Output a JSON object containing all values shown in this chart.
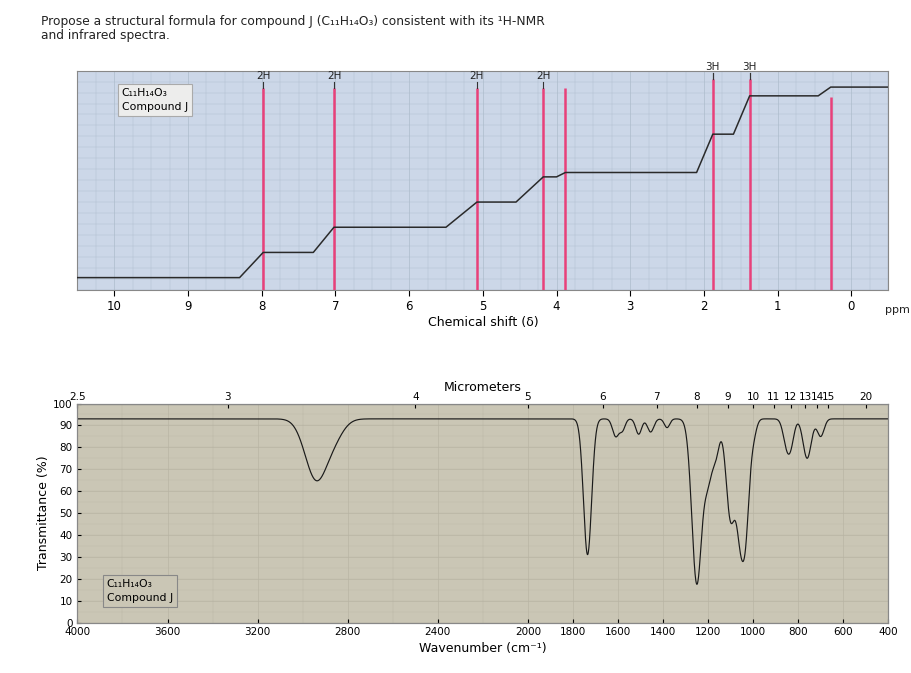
{
  "title_line1": "Propose a structural formula for compound J (C₁₁H₁₄O₃) consistent with its ¹H-NMR",
  "title_line2": "and infrared spectra.",
  "nmr_bg_color": "#ccd7e8",
  "nmr_grid_major_color": "#adbdcc",
  "nmr_grid_minor_color": "#beccda",
  "nmr_peak_color": "#e8407a",
  "nmr_integral_color": "#2a2a2a",
  "nmr_box_bg": "#ededec",
  "nmr_box_edge": "#aaaaaa",
  "nmr_label_text": "C₁₁H₁₄O₃\nCompound J",
  "peak_positions": [
    7.98,
    7.02,
    5.08,
    4.18,
    3.88,
    1.88,
    1.38,
    0.28
  ],
  "peak_labels": [
    "2H",
    "2H",
    "2H",
    "2H",
    "",
    "3H",
    "3H",
    ""
  ],
  "ir_bg_color": "#cac6b5",
  "ir_grid_color": "#b9b5a5",
  "ir_line_color": "#1a1a1a",
  "ir_label_text": "C₁₁H₁₄O₃\nCompound J",
  "ir_xlabel": "Wavenumber (cm⁻¹)",
  "ir_ylabel": "Transmittance (%)",
  "ir_micrometer_label": "Micrometers",
  "ir_micrometer_ticks": [
    2.5,
    3,
    4,
    5,
    6,
    7,
    8,
    9,
    10,
    11,
    12,
    13,
    14,
    15,
    20
  ],
  "ir_xticks": [
    4000,
    3600,
    3200,
    2800,
    2400,
    2000,
    1800,
    1600,
    1400,
    1200,
    1000,
    800,
    600,
    400
  ],
  "ir_yticks": [
    0,
    10,
    20,
    30,
    40,
    50,
    60,
    70,
    80,
    90,
    100
  ]
}
